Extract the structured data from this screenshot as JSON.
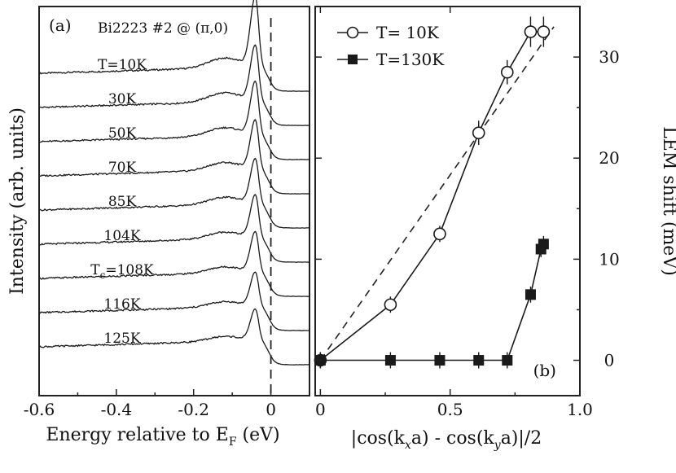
{
  "chart_data": [
    {
      "panel": "(a)",
      "type": "line",
      "title": "Bi2223 #2 @ (π,0)",
      "xlabel": "Energy relative to E",
      "xlabel_sub": "F",
      "xlabel_unit": "(eV)",
      "ylabel": "Intensity (arb. units)",
      "xlim": [
        -0.6,
        0.1
      ],
      "xticks": [
        -0.6,
        -0.4,
        -0.2,
        0
      ],
      "xtick_labels": [
        "-0.6",
        "-0.4",
        "-0.2",
        "0"
      ],
      "peak_energy_ev": -0.04,
      "marker_line_x": 0,
      "series": [
        {
          "name": "T=10K",
          "label": "T=10K",
          "peak_height": 0.78
        },
        {
          "name": "30K",
          "label": "30K",
          "peak_height": 0.62
        },
        {
          "name": "50K",
          "label": "50K",
          "peak_height": 0.6
        },
        {
          "name": "70K",
          "label": "70K",
          "peak_height": 0.55
        },
        {
          "name": "85K",
          "label": "85K",
          "peak_height": 0.5
        },
        {
          "name": "104K",
          "label": "104K",
          "peak_height": 0.48
        },
        {
          "name": "Tc=108K",
          "label": "T",
          "label_sub": "c",
          "label_tail": "=108K",
          "peak_height": 0.45
        },
        {
          "name": "116K",
          "label": "116K",
          "peak_height": 0.38
        },
        {
          "name": "125K",
          "label": "125K",
          "peak_height": 0.35
        }
      ]
    },
    {
      "panel": "(b)",
      "type": "scatter",
      "xlabel": "|cos(k",
      "xlabel_sub1": "x",
      "xlabel_mid1": "a) - cos(k",
      "xlabel_sub2": "y",
      "xlabel_mid2": "a)",
      "xlabel_tail": "|/2",
      "ylabel": "LEM shift (meV)",
      "xlim": [
        -0.02,
        1.0
      ],
      "ylim": [
        -3.5,
        35
      ],
      "xticks": [
        0,
        0.5,
        1.0
      ],
      "xtick_labels": [
        "0",
        "0.5",
        "1.0"
      ],
      "yticks": [
        0,
        10,
        20,
        30
      ],
      "ytick_labels": [
        "0",
        "10",
        "20",
        "30"
      ],
      "series": [
        {
          "name": "T= 10K",
          "marker": "open-circle",
          "x": [
            0,
            0.27,
            0.46,
            0.61,
            0.72,
            0.81,
            0.86
          ],
          "y": [
            0,
            5.5,
            12.5,
            22.5,
            28.5,
            32.5,
            32.5
          ],
          "yerr": [
            0.8,
            0.8,
            0.8,
            1.2,
            1.2,
            1.5,
            1.5
          ]
        },
        {
          "name": "T=130K",
          "marker": "filled-square",
          "x": [
            0,
            0.27,
            0.46,
            0.61,
            0.72,
            0.81,
            0.85,
            0.86
          ],
          "y": [
            0,
            0,
            0,
            0,
            0,
            6.5,
            11,
            11.5
          ],
          "yerr": [
            0.8,
            0.8,
            0.8,
            0.8,
            0.8,
            0.8,
            0.8,
            0.8
          ]
        }
      ],
      "linear_fit": {
        "style": "dashed",
        "x": [
          0,
          0.9
        ],
        "y": [
          0,
          33
        ]
      },
      "panel_label": "(b)"
    }
  ]
}
